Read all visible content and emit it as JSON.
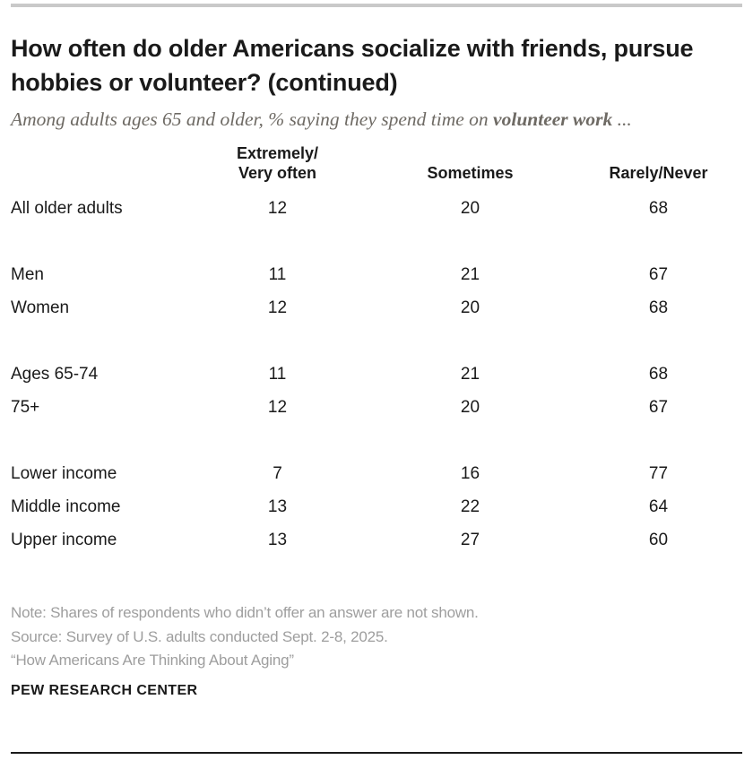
{
  "colors": {
    "text_black": "#1a1a1a",
    "subtitle_gray": "#6e6a64",
    "note_gray": "#9e9e9e",
    "top_rule_gray": "#c9c9c9",
    "bottom_rule_dark": "#1a1a1a"
  },
  "header": {
    "title": "How often do older Americans socialize with friends, pursue hobbies or volunteer? (continued)",
    "subtitle_prefix": "Among adults ages 65 and older, % saying they spend time on ",
    "subtitle_bold": "volunteer work",
    "subtitle_suffix": " ..."
  },
  "table": {
    "columns": [
      "Extremely/\nVery often",
      "Sometimes",
      "Rarely/Never"
    ],
    "groups": [
      {
        "rows": [
          {
            "label": "All older adults",
            "values": [
              "12",
              "20",
              "68"
            ]
          }
        ]
      },
      {
        "rows": [
          {
            "label": "Men",
            "values": [
              "11",
              "21",
              "67"
            ]
          },
          {
            "label": "Women",
            "values": [
              "12",
              "20",
              "68"
            ]
          }
        ]
      },
      {
        "rows": [
          {
            "label": "Ages 65-74",
            "values": [
              "11",
              "21",
              "68"
            ]
          },
          {
            "label": "75+",
            "values": [
              "12",
              "20",
              "67"
            ]
          }
        ]
      },
      {
        "rows": [
          {
            "label": "Lower income",
            "values": [
              "7",
              "16",
              "77"
            ]
          },
          {
            "label": "Middle income",
            "values": [
              "13",
              "22",
              "64"
            ]
          },
          {
            "label": "Upper income",
            "values": [
              "13",
              "27",
              "60"
            ]
          }
        ]
      }
    ]
  },
  "footer": {
    "note": "Note: Shares of respondents who didn’t offer an answer are not shown.",
    "source": "Source: Survey of U.S. adults conducted Sept. 2-8, 2025.",
    "quote": "“How Americans Are Thinking About Aging”",
    "brand": "PEW RESEARCH CENTER"
  },
  "chart_data": {
    "type": "table",
    "title": "How often do older Americans socialize with friends, pursue hobbies or volunteer? (continued)",
    "subtitle": "Among adults ages 65 and older, % saying they spend time on volunteer work ...",
    "columns": [
      "Extremely/Very often",
      "Sometimes",
      "Rarely/Never"
    ],
    "rows": [
      {
        "category": "All older adults",
        "values": [
          12,
          20,
          68
        ]
      },
      {
        "category": "Men",
        "values": [
          11,
          21,
          67
        ]
      },
      {
        "category": "Women",
        "values": [
          12,
          20,
          68
        ]
      },
      {
        "category": "Ages 65-74",
        "values": [
          11,
          21,
          68
        ]
      },
      {
        "category": "75+",
        "values": [
          12,
          20,
          67
        ]
      },
      {
        "category": "Lower income",
        "values": [
          7,
          16,
          77
        ]
      },
      {
        "category": "Middle income",
        "values": [
          13,
          22,
          64
        ]
      },
      {
        "category": "Upper income",
        "values": [
          13,
          27,
          60
        ]
      }
    ],
    "groups": [
      [
        "All older adults"
      ],
      [
        "Men",
        "Women"
      ],
      [
        "Ages 65-74",
        "75+"
      ],
      [
        "Lower income",
        "Middle income",
        "Upper income"
      ]
    ],
    "units": "% of adults ages 65 and older",
    "source": "Survey of U.S. adults conducted Sept. 2-8, 2025."
  }
}
